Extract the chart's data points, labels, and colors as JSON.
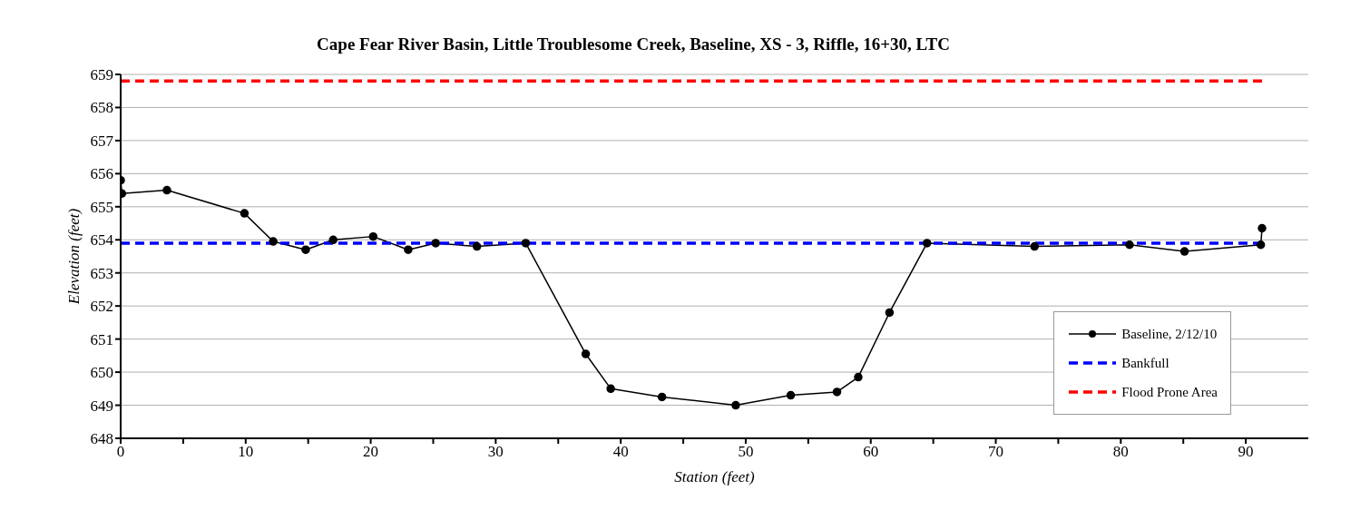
{
  "chart_data": {
    "type": "line",
    "title": "Cape Fear River Basin, Little Troublesome Creek, Baseline, XS - 3, Riffle, 16+30, LTC",
    "xlabel": "Station (feet)",
    "ylabel": "Elevation (feet)",
    "xlim": [
      0,
      95
    ],
    "xticks": [
      0,
      {
        "value": 5,
        "label": null
      },
      10,
      {
        "value": 15,
        "label": null
      },
      20,
      {
        "value": 25,
        "label": null
      },
      30,
      {
        "value": 35,
        "label": null
      },
      40,
      {
        "value": 45,
        "label": null
      },
      50,
      {
        "value": 55,
        "label": null
      },
      60,
      {
        "value": 65,
        "label": null
      },
      70,
      {
        "value": 75,
        "label": null
      },
      80,
      {
        "value": 85,
        "label": null
      },
      90
    ],
    "ylim": [
      648,
      659
    ],
    "yticks": [
      648,
      649,
      650,
      651,
      652,
      653,
      654,
      655,
      656,
      657,
      658,
      659
    ],
    "grid": "y",
    "legend": "bottom right",
    "series": [
      {
        "name": "Baseline, 2/12/10",
        "color": "#000000",
        "marker": "circle",
        "line_style": "solid",
        "x": [
          0,
          0.1,
          3.7,
          9.9,
          12.2,
          14.8,
          17,
          20.2,
          23,
          25.2,
          28.5,
          32.4,
          37.2,
          39.2,
          43.3,
          49.2,
          53.6,
          57.3,
          59,
          61.5,
          64.5,
          73.1,
          80.7,
          85.1,
          91.2,
          91.3
        ],
        "values": [
          655.8,
          655.4,
          655.5,
          654.8,
          653.95,
          653.7,
          654,
          654.1,
          653.7,
          653.9,
          653.8,
          653.9,
          650.55,
          649.5,
          649.25,
          649,
          649.3,
          649.4,
          649.85,
          651.8,
          653.9,
          653.8,
          653.85,
          653.65,
          653.85,
          654.35
        ]
      },
      {
        "name": "Bankfull",
        "color": "#0000ff",
        "marker": "none",
        "line_style": "dashed",
        "x": [
          0,
          91.3
        ],
        "values": [
          653.9,
          653.9
        ]
      },
      {
        "name": "Flood Prone Area",
        "color": "#ff0000",
        "marker": "none",
        "line_style": "dashed",
        "x": [
          0,
          91.3
        ],
        "values": [
          658.8,
          658.8
        ]
      }
    ]
  }
}
